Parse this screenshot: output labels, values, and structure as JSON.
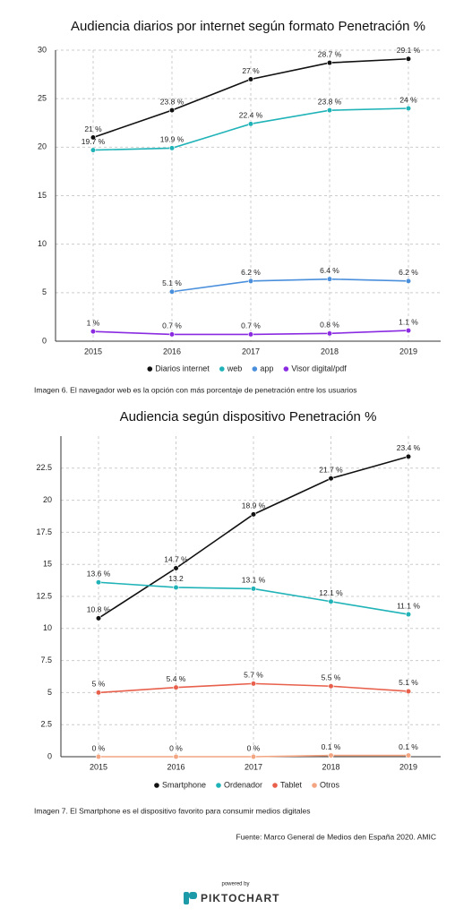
{
  "chart_data": [
    {
      "type": "line",
      "title": "Audiencia diarios por internet según formato Penetración %",
      "categories": [
        "2015",
        "2016",
        "2017",
        "2018",
        "2019"
      ],
      "ylim": [
        0,
        30
      ],
      "yticks": [
        0,
        5,
        10,
        15,
        20,
        25,
        30
      ],
      "grid": true,
      "legend": "bottom",
      "series": [
        {
          "name": "Diarios internet",
          "color": "#111111",
          "values": [
            21,
            23.8,
            27,
            28.7,
            29.1
          ],
          "value_labels": [
            "21 %",
            "23.8 %",
            "27 %",
            "28.7 %",
            "29.1 %"
          ]
        },
        {
          "name": "web",
          "color": "#1fb3b8",
          "values": [
            19.7,
            19.9,
            22.4,
            23.8,
            24
          ],
          "value_labels": [
            "19.7 %",
            "19.9 %",
            "22.4 %",
            "23.8 %",
            "24 %"
          ]
        },
        {
          "name": "app",
          "color": "#4a8fdc",
          "values": [
            null,
            5.1,
            6.2,
            6.4,
            6.2
          ],
          "value_labels": [
            null,
            "5.1 %",
            "6.2 %",
            "6.4 %",
            "6.2 %"
          ]
        },
        {
          "name": "Visor digital/pdf",
          "color": "#8a2be2",
          "values": [
            1,
            0.7,
            0.7,
            0.8,
            1.1
          ],
          "value_labels": [
            "1 %",
            "0.7 %",
            "0.7 %",
            "0.8 %",
            "1.1 %"
          ]
        }
      ]
    },
    {
      "type": "line",
      "title": "Audiencia según dispositivo Penetración %",
      "categories": [
        "2015",
        "2016",
        "2017",
        "2018",
        "2019"
      ],
      "ylim": [
        0,
        25
      ],
      "yticks": [
        0,
        2.5,
        5,
        7.5,
        10,
        12.5,
        15,
        17.5,
        20,
        22.5
      ],
      "grid": true,
      "legend": "bottom",
      "series": [
        {
          "name": "Smartphone",
          "color": "#111111",
          "values": [
            10.8,
            14.7,
            18.9,
            21.7,
            23.4
          ],
          "value_labels": [
            "10.8 %",
            "14.7 %",
            "18.9 %",
            "21.7 %",
            "23.4 %"
          ]
        },
        {
          "name": "Ordenador",
          "color": "#1fb3b8",
          "values": [
            13.6,
            13.2,
            13.1,
            12.1,
            11.1
          ],
          "value_labels": [
            "13.6 %",
            "13.2",
            "13.1 %",
            "12.1 %",
            "11.1 %"
          ]
        },
        {
          "name": "Tablet",
          "color": "#e8604c",
          "values": [
            5,
            5.4,
            5.7,
            5.5,
            5.1
          ],
          "value_labels": [
            "5 %",
            "5.4 %",
            "5.7 %",
            "5.5 %",
            "5.1 %"
          ]
        },
        {
          "name": "Otros",
          "color": "#f4a582",
          "values": [
            0,
            0,
            0,
            0.1,
            0.1
          ],
          "value_labels": [
            "0 %",
            "0 %",
            "0 %",
            "0.1 %",
            "0.1 %"
          ]
        }
      ]
    }
  ],
  "captions": [
    "Imagen 6. El navegador web es la opción con más porcentaje de penetración entre los usuarios",
    "Imagen 7. El Smartphone es el dispositivo favorito para consumir medios digitales"
  ],
  "source": "Fuente:  Marco General de Medios den España 2020. AMIC",
  "footer": {
    "powered_by": "powered by",
    "brand": "PIKTOCHART"
  }
}
